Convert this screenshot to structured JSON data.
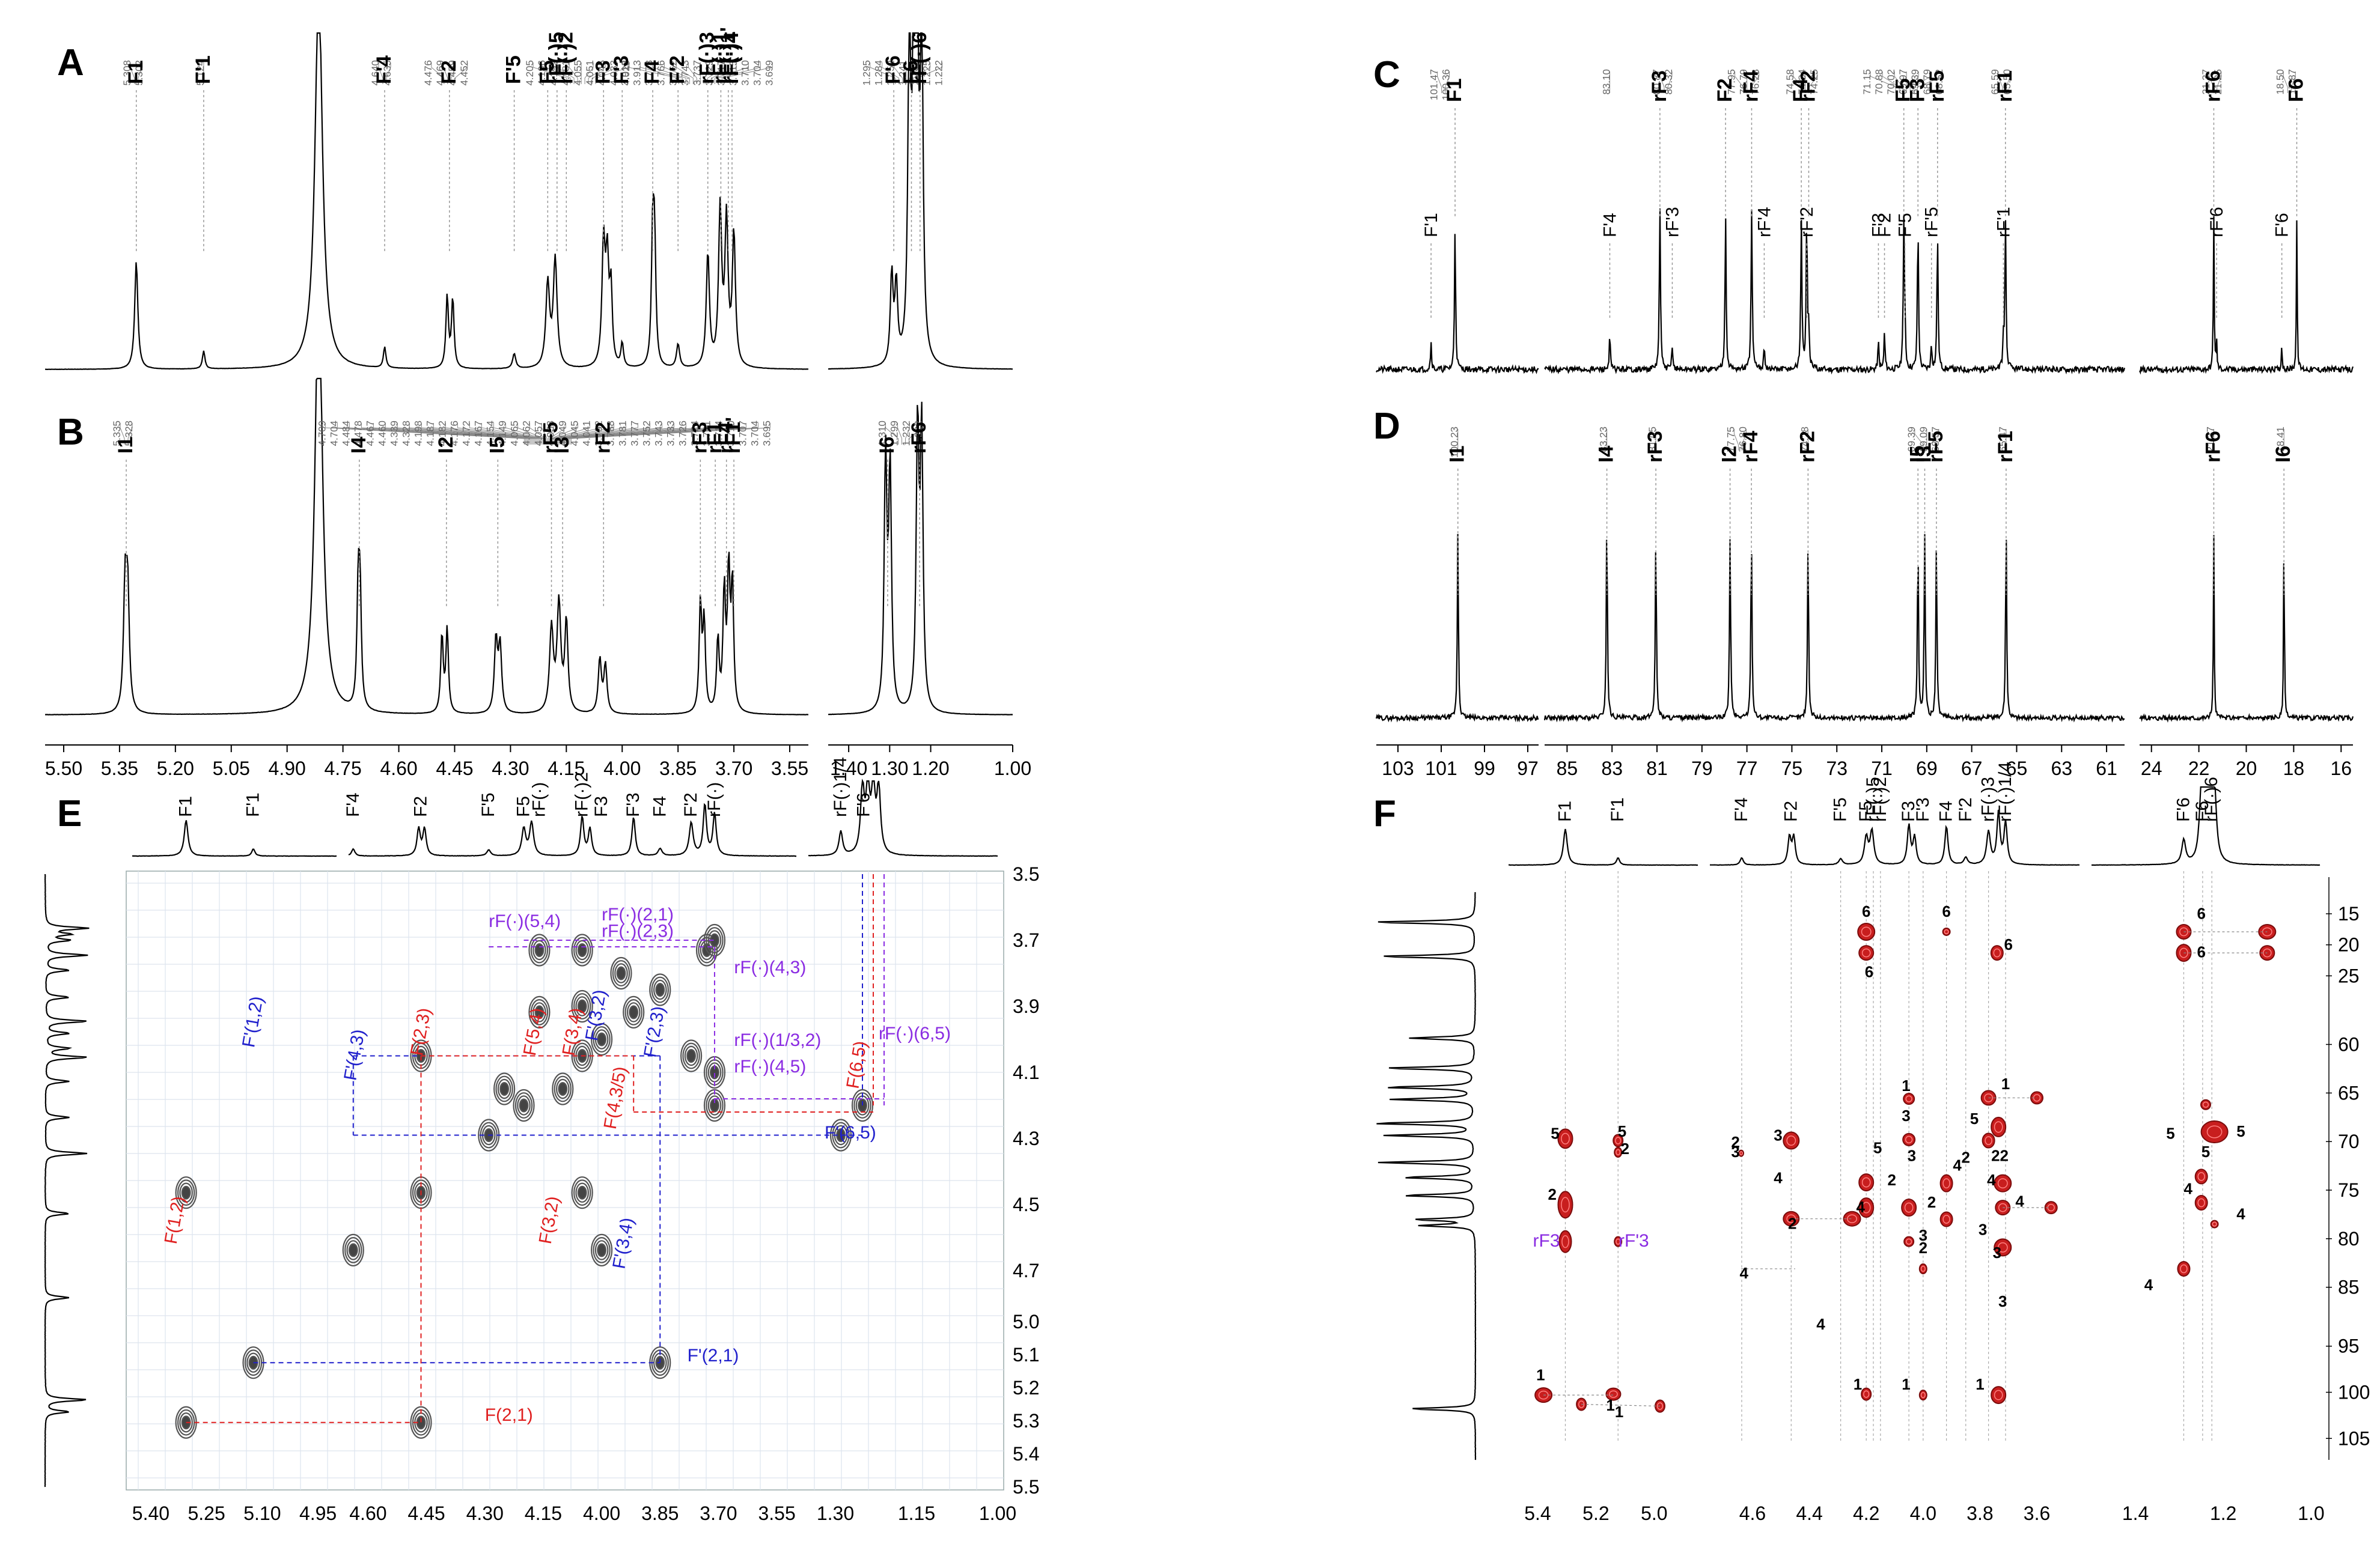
{
  "chart_data": [
    {
      "panel": "A",
      "type": "line",
      "nucleus": "1H",
      "peak_ticks": [
        {
          "group": [
            "5.308",
            "5.302"
          ],
          "x": 5.305
        },
        {
          "group": [
            "5.124"
          ],
          "x": 5.124
        },
        {
          "group": [
            "4.640",
            "4.635"
          ],
          "x": 4.638
        },
        {
          "group": [
            "4.476",
            "4.469",
            "4.459",
            "4.452"
          ],
          "x": 4.464
        },
        {
          "group": [
            "4.205",
            "4.196",
            "4.192",
            "4.181",
            "4.055",
            "4.051",
            "4.045",
            "4.033",
            "4.028"
          ],
          "x": 4.11
        },
        {
          "group": [
            "3.918",
            "3.913",
            "3.773",
            "3.766",
            "3.762",
            "3.743",
            "3.737",
            "3.729",
            "3.717",
            "3.715",
            "3.710",
            "3.704",
            "3.699"
          ],
          "x": 3.79
        },
        {
          "group": [
            "1.295",
            "1.284",
            "1.252",
            "1.241",
            "1.233",
            "1.225",
            "1.222"
          ],
          "x": 1.26
        }
      ],
      "assignments": [
        {
          "label": "F1",
          "x": 5.305
        },
        {
          "label": "F'1",
          "x": 5.124
        },
        {
          "label": "F'4",
          "x": 4.638
        },
        {
          "label": "F2",
          "x": 4.464
        },
        {
          "label": "F'5",
          "x": 4.29
        },
        {
          "label": "F5",
          "x": 4.2
        },
        {
          "label": "rF⁽⁾5",
          "x": 4.175
        },
        {
          "label": "rF⁽⁾2",
          "x": 4.15
        },
        {
          "label": "F3",
          "x": 4.05
        },
        {
          "label": "F'3",
          "x": 4.0
        },
        {
          "label": "F4",
          "x": 3.918
        },
        {
          "label": "F'2",
          "x": 3.85
        },
        {
          "label": "rF⁽⁾3",
          "x": 3.77
        },
        {
          "label": "rF⁽⁾1",
          "x": 3.735
        },
        {
          "label": "rF⁽⁾1'",
          "x": 3.715
        },
        {
          "label": "rF⁽⁾4",
          "x": 3.705
        },
        {
          "label": "F'6",
          "x": 1.29
        },
        {
          "label": "F6",
          "x": 1.247
        },
        {
          "label": "rF⁽⁾6",
          "x": 1.226
        }
      ]
    },
    {
      "panel": "B",
      "type": "line",
      "nucleus": "1H",
      "peak_ticks": [
        {
          "group": [
            "5.335",
            "5.328"
          ],
          "x": 5.332
        },
        {
          "group": [
            "4.709",
            "4.704",
            "4.484",
            "4.478",
            "4.467",
            "4.460",
            "4.339",
            "4.328",
            "4.198",
            "4.187",
            "4.182",
            "4.176",
            "4.172",
            "4.167",
            "4.154",
            "4.149",
            "4.065",
            "4.062",
            "4.057",
            "4.053",
            "4.049",
            "4.045",
            "4.041",
            "3.792",
            "3.788",
            "3.781",
            "3.777",
            "3.752",
            "3.743",
            "3.733",
            "3.726",
            "3.724",
            "3.721",
            "3.714",
            "3.710",
            "3.707",
            "3.704",
            "3.695"
          ],
          "x": 4.2
        },
        {
          "group": [
            "1.310",
            "1.299",
            "1.232",
            "1.222"
          ],
          "x": 1.266
        }
      ],
      "assignments": [
        {
          "label": "I1",
          "x": 5.332
        },
        {
          "label": "I4",
          "x": 4.706
        },
        {
          "label": "I2",
          "x": 4.472
        },
        {
          "label": "I5",
          "x": 4.334
        },
        {
          "label": "rF5",
          "x": 4.19
        },
        {
          "label": "I3",
          "x": 4.16
        },
        {
          "label": "rF2",
          "x": 4.05
        },
        {
          "label": "rF3",
          "x": 3.79
        },
        {
          "label": "rF1",
          "x": 3.75
        },
        {
          "label": "rF4",
          "x": 3.72
        },
        {
          "label": "rF1'",
          "x": 3.7
        },
        {
          "label": "I6",
          "x": 1.305
        },
        {
          "label": "rF6",
          "x": 1.227
        }
      ]
    },
    {
      "panel": "AB-x-axis",
      "type": "line",
      "axis": "1H ppm",
      "xticks": [
        "5.50",
        "5.35",
        "5.20",
        "5.05",
        "4.90",
        "4.75",
        "4.60",
        "4.45",
        "4.30",
        "4.15",
        "4.00",
        "3.85",
        "3.70",
        "3.55",
        "1.40",
        "1.30",
        "1.20",
        "1.00"
      ]
    },
    {
      "panel": "C",
      "type": "line",
      "nucleus": "13C",
      "peak_ticks": [
        {
          "group": [
            "101.47",
            "100.36"
          ],
          "x": 100.9
        },
        {
          "group": [
            "83.10"
          ],
          "x": 83.1
        },
        {
          "group": [
            "80.87",
            "80.32"
          ],
          "x": 80.6
        },
        {
          "group": [
            "77.95",
            "76.79",
            "76.23"
          ],
          "x": 77.0
        },
        {
          "group": [
            "74.58",
            "74.34",
            "74.25"
          ],
          "x": 74.4
        },
        {
          "group": [
            "71.15",
            "70.88",
            "70.02",
            "69.97",
            "69.39",
            "68.79",
            "68.52"
          ],
          "x": 69.9
        },
        {
          "group": [
            "65.59",
            "65.50"
          ],
          "x": 65.55
        },
        {
          "group": [
            "21.37",
            "21.25"
          ],
          "x": 21.31
        },
        {
          "group": [
            "18.50",
            "17.87"
          ],
          "x": 18.18
        }
      ],
      "assignments_top": [
        {
          "label": "F1",
          "x": 100.36
        },
        {
          "label": "rF3",
          "x": 80.87
        },
        {
          "label": "F2",
          "x": 77.95
        },
        {
          "label": "rF4",
          "x": 76.79
        },
        {
          "label": "F4",
          "x": 74.58
        },
        {
          "label": "rF2",
          "x": 74.25
        },
        {
          "label": "F5",
          "x": 70.02
        },
        {
          "label": "F3",
          "x": 69.39
        },
        {
          "label": "rF5",
          "x": 68.52
        },
        {
          "label": "rF1",
          "x": 65.5
        },
        {
          "label": "rF6",
          "x": 21.37
        },
        {
          "label": "F6",
          "x": 17.87
        }
      ],
      "assignments_low": [
        {
          "label": "F'1",
          "x": 101.47
        },
        {
          "label": "F'4",
          "x": 83.1
        },
        {
          "label": "rF'3",
          "x": 80.32
        },
        {
          "label": "rF'4",
          "x": 76.23
        },
        {
          "label": "rF'2",
          "x": 74.34
        },
        {
          "label": "F'3",
          "x": 71.15
        },
        {
          "label": "F'2",
          "x": 70.88
        },
        {
          "label": "F'5",
          "x": 69.97
        },
        {
          "label": "rF'5",
          "x": 68.79
        },
        {
          "label": "rF'1",
          "x": 65.59
        },
        {
          "label": "rF'6",
          "x": 21.25
        },
        {
          "label": "F'6",
          "x": 18.5
        }
      ]
    },
    {
      "panel": "D",
      "type": "line",
      "nucleus": "13C",
      "peak_ticks": [
        {
          "group": [
            "100.23"
          ],
          "x": 100.23
        },
        {
          "group": [
            "83.23"
          ],
          "x": 83.23
        },
        {
          "group": [
            "81.05"
          ],
          "x": 81.05
        },
        {
          "group": [
            "77.75",
            "76.80"
          ],
          "x": 77.3
        },
        {
          "group": [
            "74.28"
          ],
          "x": 74.28
        },
        {
          "group": [
            "69.39",
            "69.09",
            "68.57"
          ],
          "x": 69.0
        },
        {
          "group": [
            "65.47"
          ],
          "x": 65.47
        },
        {
          "group": [
            "21.37"
          ],
          "x": 21.37
        },
        {
          "group": [
            "18.41"
          ],
          "x": 18.41
        }
      ],
      "assignments": [
        {
          "label": "I1",
          "x": 100.23
        },
        {
          "label": "I4",
          "x": 83.23
        },
        {
          "label": "rF3",
          "x": 81.05
        },
        {
          "label": "I2",
          "x": 77.75
        },
        {
          "label": "rF4",
          "x": 76.8
        },
        {
          "label": "rF2",
          "x": 74.28
        },
        {
          "label": "I5",
          "x": 69.39
        },
        {
          "label": "I3",
          "x": 69.09
        },
        {
          "label": "rF5",
          "x": 68.57
        },
        {
          "label": "rF1",
          "x": 65.47
        },
        {
          "label": "rF6",
          "x": 21.37
        },
        {
          "label": "I6",
          "x": 18.41
        }
      ]
    },
    {
      "panel": "CD-x-axis",
      "type": "line",
      "axis": "13C ppm",
      "xticks": [
        "103",
        "101",
        "99",
        "97",
        "85",
        "83",
        "81",
        "79",
        "77",
        "75",
        "73",
        "71",
        "69",
        "67",
        "65",
        "63",
        "61",
        "24",
        "22",
        "20",
        "18",
        "16"
      ]
    },
    {
      "panel": "E",
      "type": "scatter",
      "experiment": "COSY",
      "top_labels": [
        "F1",
        "F'1",
        "F'4",
        "F2",
        "F'5",
        "F5",
        "rF⁽⁾",
        "rF⁽⁾2",
        "F3",
        "F'3",
        "F4",
        "F'2",
        "rF⁽⁾",
        "rF⁽⁾1/4",
        "F'6",
        "F6"
      ],
      "xticks": [
        "5.40",
        "5.25",
        "5.10",
        "4.95",
        "4.60",
        "4.45",
        "4.30",
        "4.15",
        "4.00",
        "3.85",
        "3.70",
        "3.55",
        "1.30",
        "1.15",
        "1.00"
      ],
      "yticks": [
        "3.5",
        "3.7",
        "3.9",
        "4.1",
        "4.3",
        "4.5",
        "4.7",
        "5.0",
        "5.1",
        "5.2",
        "5.3",
        "5.4",
        "5.5"
      ],
      "cross_peak_labels": [
        {
          "text": "rF⁽⁾(5,4)",
          "color": "#8a2be2"
        },
        {
          "text": "rF⁽⁾(2,1)",
          "color": "#8a2be2"
        },
        {
          "text": "rF⁽⁾(2,3)",
          "color": "#8a2be2"
        },
        {
          "text": "rF⁽⁾(4,3)",
          "color": "#8a2be2"
        },
        {
          "text": "rF⁽⁾(1/3,2)",
          "color": "#8a2be2"
        },
        {
          "text": "rF⁽⁾(4,5)",
          "color": "#8a2be2"
        },
        {
          "text": "rF⁽⁾(6,5)",
          "color": "#8a2be2"
        },
        {
          "text": "F'(1,2)",
          "color": "#2020cc"
        },
        {
          "text": "F'(4,3)",
          "color": "#2020cc"
        },
        {
          "text": "F'(3,2)",
          "color": "#2020cc"
        },
        {
          "text": "F'(2,3)",
          "color": "#2020cc"
        },
        {
          "text": "F'(6,5)",
          "color": "#2020cc"
        },
        {
          "text": "F'(3,4)",
          "color": "#2020cc"
        },
        {
          "text": "F'(2,1)",
          "color": "#2020cc"
        },
        {
          "text": "F(2,3)",
          "color": "#e02020"
        },
        {
          "text": "F(5,4)",
          "color": "#e02020"
        },
        {
          "text": "F(3,4)",
          "color": "#e02020"
        },
        {
          "text": "F(4,3/5)",
          "color": "#e02020"
        },
        {
          "text": "F(6,5)",
          "color": "#e02020"
        },
        {
          "text": "F(1,2)",
          "color": "#e02020"
        },
        {
          "text": "F(3,2)",
          "color": "#e02020"
        },
        {
          "text": "F(2,1)",
          "color": "#e02020"
        }
      ]
    },
    {
      "panel": "F",
      "type": "scatter",
      "experiment": "HMBC",
      "top_labels": [
        "F1",
        "F'1",
        "F'4",
        "F2",
        "F'5",
        "F5",
        "rF⁽⁾5",
        "rF⁽⁾2",
        "F3",
        "F'3",
        "F4",
        "F'2",
        "rF⁽⁾3",
        "rF⁽⁾1/4",
        "F'6",
        "F6",
        "rF⁽⁾6"
      ],
      "xticks": [
        "5.4",
        "5.2",
        "5.0",
        "4.6",
        "4.4",
        "4.2",
        "4.0",
        "3.8",
        "3.6",
        "1.4",
        "1.2",
        "1.0"
      ],
      "yticks": [
        "15",
        "20",
        "25",
        "60",
        "65",
        "70",
        "75",
        "80",
        "85",
        "95",
        "100",
        "105"
      ],
      "side_labels": [
        {
          "text": "rF3",
          "color": "#8a2be2"
        },
        {
          "text": "rF'3",
          "color": "#8a2be2"
        }
      ]
    }
  ]
}
